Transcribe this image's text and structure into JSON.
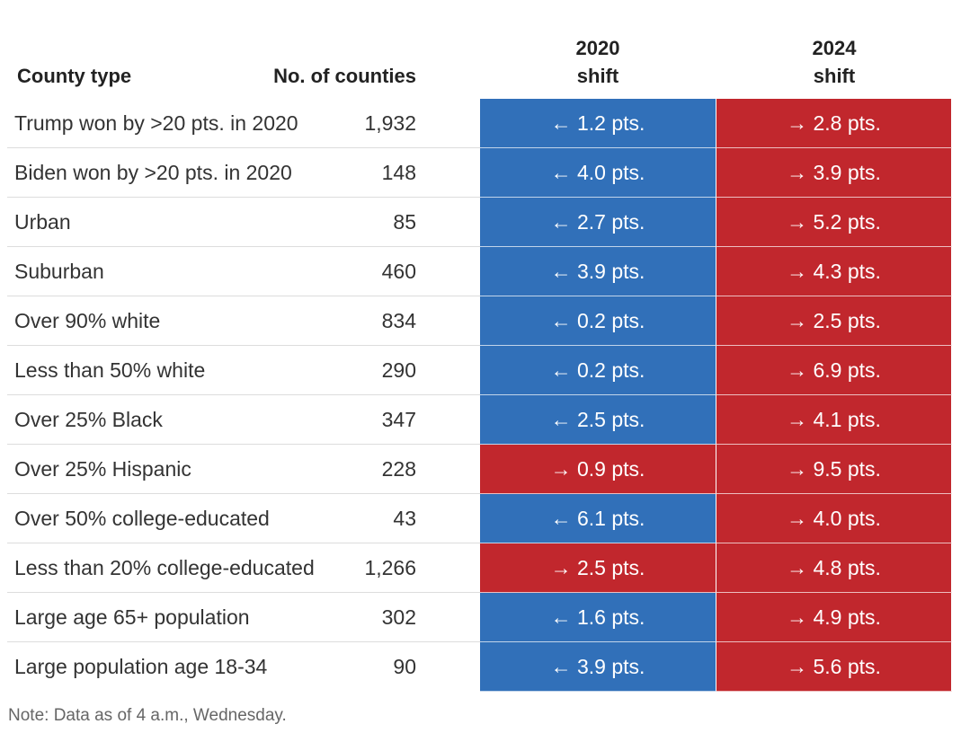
{
  "table": {
    "header": [
      "County type",
      "No. of counties",
      "2020\nshift",
      "2024\nshift"
    ],
    "rows": [
      [
        "Trump won by >20 pts. in 2020",
        "1,932",
        {
          "text": "← 1.2 pts.",
          "color": "#3170b9"
        },
        {
          "text": "→ 2.8 pts.",
          "color": "#c1272d"
        }
      ],
      [
        "Biden won by >20 pts. in 2020",
        "148",
        {
          "text": "← 4.0 pts.",
          "color": "#3170b9"
        },
        {
          "text": "→ 3.9 pts.",
          "color": "#c1272d"
        }
      ],
      [
        "Urban",
        "85",
        {
          "text": "← 2.7 pts.",
          "color": "#3170b9"
        },
        {
          "text": "→ 5.2 pts.",
          "color": "#c1272d"
        }
      ],
      [
        "Suburban",
        "460",
        {
          "text": "← 3.9 pts.",
          "color": "#3170b9"
        },
        {
          "text": "→ 4.3 pts.",
          "color": "#c1272d"
        }
      ],
      [
        "Over 90% white",
        "834",
        {
          "text": "← 0.2 pts.",
          "color": "#3170b9"
        },
        {
          "text": "→ 2.5 pts.",
          "color": "#c1272d"
        }
      ],
      [
        "Less than 50% white",
        "290",
        {
          "text": "← 0.2 pts.",
          "color": "#3170b9"
        },
        {
          "text": "→ 6.9 pts.",
          "color": "#c1272d"
        }
      ],
      [
        "Over 25% Black",
        "347",
        {
          "text": "← 2.5 pts.",
          "color": "#3170b9"
        },
        {
          "text": "→ 4.1 pts.",
          "color": "#c1272d"
        }
      ],
      [
        "Over 25% Hispanic",
        "228",
        {
          "text": "→ 0.9 pts.",
          "color": "#c1272d"
        },
        {
          "text": "→ 9.5 pts.",
          "color": "#c1272d"
        }
      ],
      [
        "Over 50% college-educated",
        "43",
        {
          "text": "← 6.1 pts.",
          "color": "#3170b9"
        },
        {
          "text": "→ 4.0 pts.",
          "color": "#c1272d"
        }
      ],
      [
        "Less than 20% college-educated",
        "1,266",
        {
          "text": "→ 2.5 pts.",
          "color": "#c1272d"
        },
        {
          "text": "→ 4.8 pts.",
          "color": "#c1272d"
        }
      ],
      [
        "Large age 65+ population",
        "302",
        {
          "text": "← 1.6 pts.",
          "color": "#3170b9"
        },
        {
          "text": "→ 4.9 pts.",
          "color": "#c1272d"
        }
      ],
      [
        "Large population age 18-34",
        "90",
        {
          "text": "← 3.9 pts.",
          "color": "#3170b9"
        },
        {
          "text": "→ 5.6 pts.",
          "color": "#c1272d"
        }
      ]
    ],
    "note": "Note: Data as of 4 a.m., Wednesday."
  }
}
